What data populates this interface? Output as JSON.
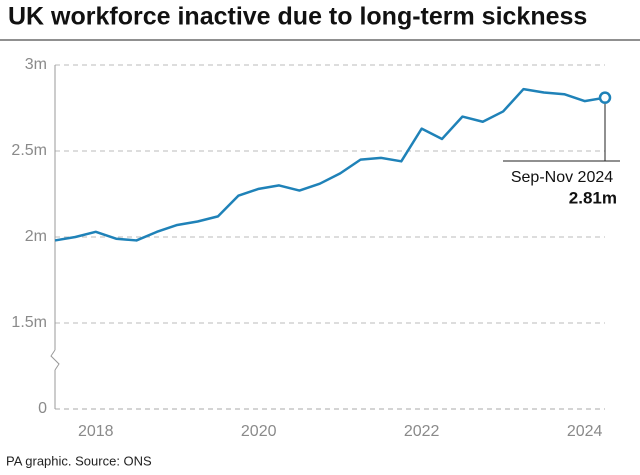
{
  "chart_data": {
    "type": "line",
    "title": "UK workforce inactive due to long-term sickness",
    "source": "PA graphic. Source: ONS",
    "categories": [
      null,
      null,
      "2018",
      null,
      null,
      null,
      null,
      null,
      null,
      null,
      "2020",
      null,
      null,
      null,
      null,
      null,
      null,
      null,
      "2022",
      null,
      null,
      null,
      null,
      null,
      null,
      null,
      "2024",
      "Sep-Nov 2024"
    ],
    "series": [
      {
        "name": "Inactive due to long-term sickness",
        "color": "#1f82b8",
        "values": [
          1.98,
          2.0,
          2.03,
          1.99,
          1.98,
          2.03,
          2.07,
          2.09,
          2.12,
          2.24,
          2.28,
          2.3,
          2.27,
          2.31,
          2.37,
          2.45,
          2.46,
          2.44,
          2.63,
          2.57,
          2.7,
          2.67,
          2.73,
          2.86,
          2.84,
          2.83,
          2.79,
          2.81
        ],
        "value_labels": [
          null,
          null,
          null,
          null,
          null,
          null,
          null,
          null,
          null,
          null,
          null,
          null,
          null,
          null,
          null,
          null,
          null,
          null,
          null,
          null,
          null,
          null,
          null,
          null,
          null,
          null,
          null,
          "2.81m"
        ]
      }
    ],
    "ylim": [
      0,
      3
    ],
    "y_break": [
      0,
      1
    ],
    "yticks": [
      {
        "value": 0,
        "label": "0"
      },
      {
        "value": 1.5,
        "label": "1.5m"
      },
      {
        "value": 2,
        "label": "2m"
      },
      {
        "value": 2.5,
        "label": "2.5m"
      },
      {
        "value": 3,
        "label": "3m"
      }
    ],
    "grid": true
  }
}
